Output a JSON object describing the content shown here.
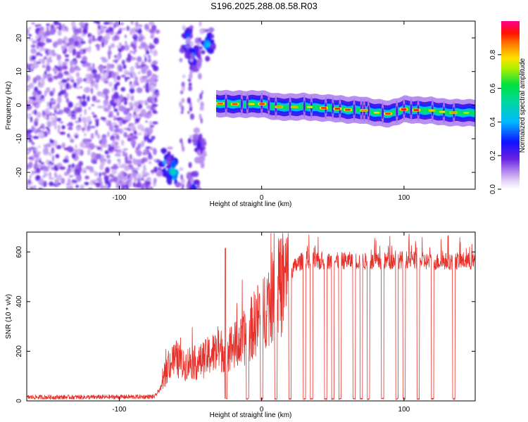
{
  "title": "S196.2025.288.08.58.R03",
  "chart_data": [
    {
      "type": "heatmap",
      "xlabel": "Height of straight line (km)",
      "ylabel": "Frequency (Hz)",
      "xlim": [
        -165,
        150
      ],
      "ylim": [
        -25,
        25
      ],
      "xticks": [
        -100,
        0,
        100
      ],
      "xtick_labels": [
        "-100",
        "0",
        "100"
      ],
      "yticks": [
        -20,
        -10,
        0,
        10,
        20
      ],
      "ytick_labels": [
        "-20",
        "-10",
        "0",
        "10",
        "20"
      ],
      "colorbar": {
        "label": "Normalized spectral amplitude",
        "range": [
          0,
          1
        ],
        "ticks": [
          0.0,
          0.2,
          0.4,
          0.6,
          0.8
        ],
        "tick_labels": [
          "0.0",
          "0.2",
          "0.4",
          "0.6",
          "0.8"
        ],
        "colors": [
          "#ffffff",
          "#c9a4ef",
          "#7b2fe0",
          "#0000ff",
          "#00c8ff",
          "#00e060",
          "#f0f000",
          "#ff8000",
          "#ff0000",
          "#ff00a0"
        ]
      },
      "noise_region_x": [
        -165,
        -73
      ],
      "signal_trace": {
        "description_x": [
          -32,
          -20,
          -10,
          0,
          10,
          20,
          30,
          40,
          50,
          60,
          70,
          80,
          90,
          100,
          110,
          120,
          130,
          148
        ],
        "frequency": [
          0.5,
          0.3,
          0.3,
          0.4,
          -0.5,
          -0.6,
          -0.4,
          -0.8,
          -0.9,
          -1.4,
          -1.4,
          -2.2,
          -2.6,
          -1.2,
          -1.5,
          -1.6,
          -2.2,
          -2.3
        ]
      },
      "early_patches": [
        {
          "x": -68,
          "y": -17,
          "peak": 0.4
        },
        {
          "x": -62,
          "y": -20,
          "peak": 0.5
        },
        {
          "x": -52,
          "y": 19,
          "peak": 0.4
        },
        {
          "x": -48,
          "y": 15,
          "peak": 0.35
        },
        {
          "x": -38,
          "y": 18,
          "peak": 0.4
        },
        {
          "x": -48,
          "y": -24,
          "peak": 0.3
        },
        {
          "x": -44,
          "y": -12,
          "peak": 0.25
        }
      ]
    },
    {
      "type": "line",
      "xlabel": "Height of straight line (km)",
      "ylabel": "SNR (10 * v/v)",
      "xlim": [
        -165,
        150
      ],
      "ylim": [
        0,
        680
      ],
      "xticks": [
        -100,
        0,
        100
      ],
      "xtick_labels": [
        "-100",
        "0",
        "100"
      ],
      "yticks": [
        0,
        200,
        400,
        600
      ],
      "ytick_labels": [
        "0",
        "200",
        "400",
        "600"
      ],
      "line_color": "#e8302a",
      "series": [
        {
          "name": "SNR envelope",
          "x": [
            -165,
            -120,
            -75,
            -70,
            -65,
            -60,
            -55,
            -50,
            -45,
            -40,
            -35,
            -30,
            -25,
            -20,
            -15,
            -10,
            -5,
            0,
            5,
            10,
            15,
            20,
            25,
            30,
            40,
            60,
            80,
            100,
            120,
            140,
            150
          ],
          "values": [
            15,
            15,
            17,
            60,
            150,
            170,
            140,
            160,
            150,
            170,
            190,
            200,
            210,
            220,
            230,
            270,
            310,
            360,
            400,
            430,
            470,
            520,
            550,
            570,
            560,
            565,
            560,
            570,
            560,
            565,
            560
          ]
        }
      ],
      "dropout_x": [
        -25,
        -10,
        0,
        10,
        20,
        30,
        35,
        45,
        50,
        55,
        65,
        70,
        75,
        85,
        95,
        100,
        110,
        120,
        135
      ]
    }
  ]
}
